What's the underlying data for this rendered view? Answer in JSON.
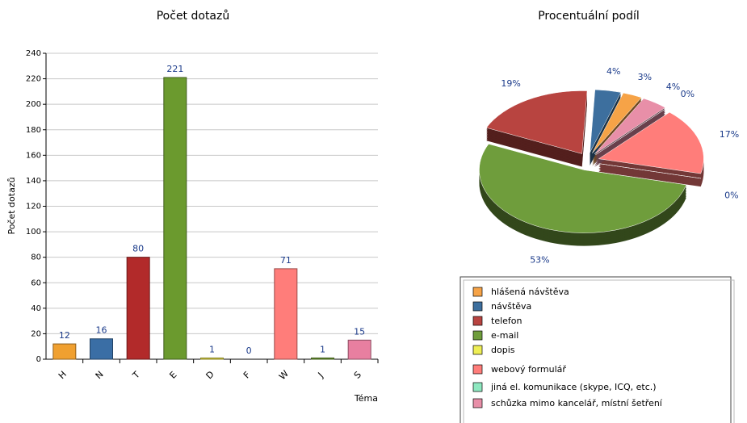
{
  "chart_data": [
    {
      "type": "bar",
      "title": "Počet dotazů",
      "y_label": "Počet dotazů",
      "x_label": "Téma",
      "categories": [
        "H",
        "N",
        "T",
        "E",
        "D",
        "F",
        "W",
        "J",
        "S"
      ],
      "values": [
        12,
        16,
        80,
        221,
        1,
        0,
        71,
        1,
        15
      ],
      "colors": [
        "#f0a030",
        "#3a6ea5",
        "#b22a2a",
        "#6b9a2e",
        "#e0d840",
        "#999999",
        "#ff7d7a",
        "#6b9a2e",
        "#e87fa0"
      ],
      "ylim": [
        0,
        240
      ],
      "yticks": [
        0,
        20,
        40,
        60,
        80,
        100,
        120,
        140,
        160,
        180,
        200,
        220,
        240
      ],
      "grid": true
    },
    {
      "type": "pie",
      "title": "Procentuální podíl",
      "categories": [
        "hlášená návštěva",
        "návštěva",
        "telefon",
        "e-mail",
        "dopis",
        "webový formulář",
        "jiná el. komunikace (skype, ICQ, etc.)",
        "schůzka mimo kancelář, místní šetření"
      ],
      "values": [
        3,
        4,
        19,
        53,
        0,
        17,
        0,
        4
      ],
      "value_labels": [
        "3%",
        "4%",
        "19%",
        "53%",
        "0%",
        "17%",
        "0%",
        "4%"
      ],
      "colors": [
        "#f6a347",
        "#3d6f9e",
        "#b84440",
        "#6f9d3c",
        "#eeee55",
        "#ff7d7a",
        "#8ee8c0",
        "#e88fa8"
      ]
    }
  ]
}
